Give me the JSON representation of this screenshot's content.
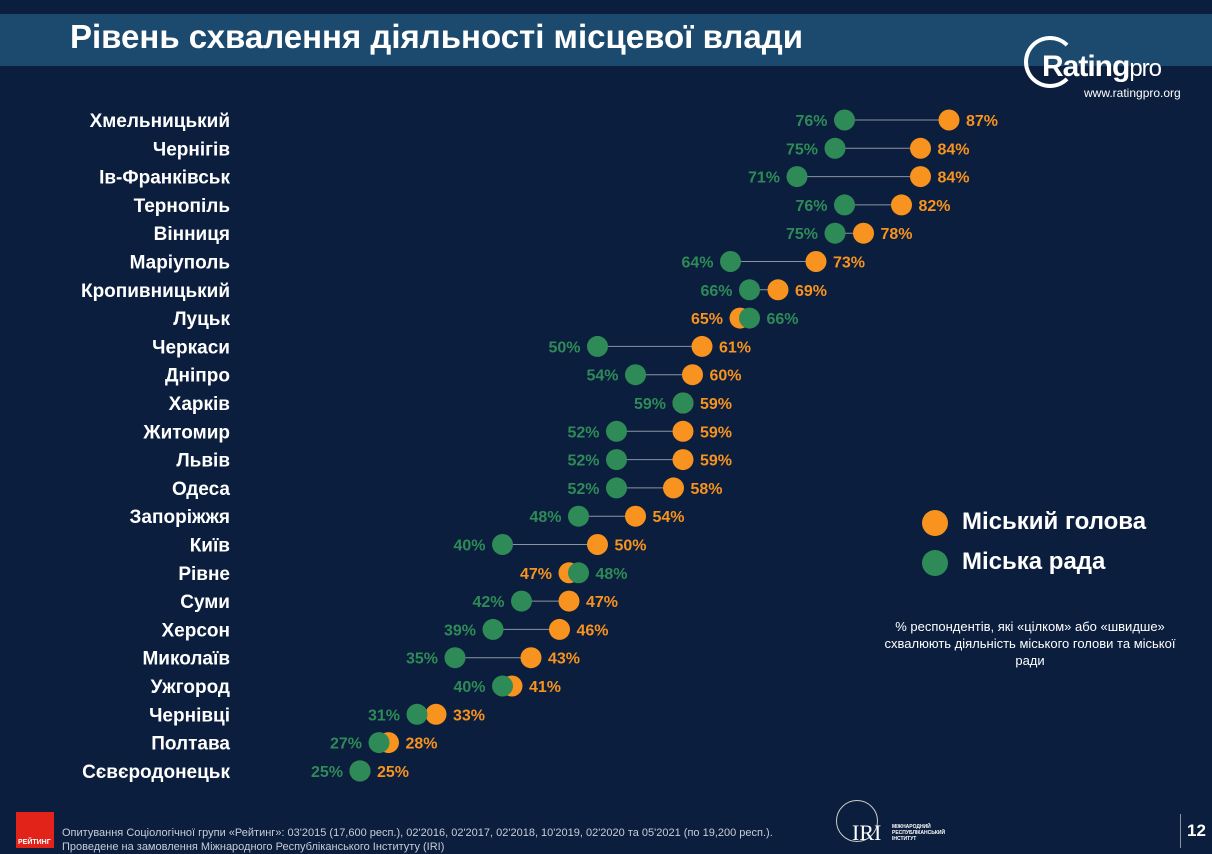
{
  "title": "Рівень схвалення діяльності місцевої влади",
  "logo": {
    "word": "Rating",
    "suffix": "pro",
    "url": "www.ratingpro.org"
  },
  "legend": {
    "mayor": "Міський голова",
    "council": "Міська рада"
  },
  "note": "% респондентів, які «цілком» або «швидше» схвалюють діяльність міського голови та міської ради",
  "footer": {
    "badge": "РЕЙТИНГ",
    "line1": "Опитування Соціологічної групи «Рейтинг»: 03'2015 (17,600 респ.), 02'2016, 02'2017, 02'2018, 10'2019, 02'2020 та 05'2021 (по 19,200 респ.).",
    "line2": "Проведене на замовлення Міжнародного Республіканського Інституту (IRI)"
  },
  "iri": {
    "name": "IRI",
    "subtitle": "МІЖНАРОДНИЙ РЕСПУБЛІКАНСЬКИЙ ІНСТИТУТ"
  },
  "page_number": "12",
  "colors": {
    "mayor": "#f7931e",
    "council": "#2e8b57",
    "background": "#0b1e3d",
    "title_bar": "#1c4a6e"
  },
  "chart_data": {
    "type": "dumbbell",
    "categories": [
      "Хмельницький",
      "Чернігів",
      "Ів-Франківськ",
      "Тернопіль",
      "Вінниця",
      "Маріуполь",
      "Кропивницький",
      "Луцьк",
      "Черкаси",
      "Дніпро",
      "Харків",
      "Житомир",
      "Львів",
      "Одеса",
      "Запоріжжя",
      "Київ",
      "Рівне",
      "Суми",
      "Херсон",
      "Миколаїв",
      "Ужгород",
      "Чернівці",
      "Полтава",
      "Сєвєродонецьк"
    ],
    "series": [
      {
        "name": "Міський голова",
        "values": [
          87,
          84,
          84,
          82,
          78,
          73,
          69,
          65,
          61,
          60,
          59,
          59,
          59,
          58,
          54,
          50,
          47,
          47,
          46,
          43,
          41,
          33,
          28,
          25
        ]
      },
      {
        "name": "Міська рада",
        "values": [
          76,
          75,
          71,
          76,
          75,
          64,
          66,
          66,
          50,
          54,
          59,
          52,
          52,
          52,
          48,
          40,
          48,
          42,
          39,
          35,
          40,
          31,
          27,
          25
        ]
      }
    ],
    "value_suffix": "%"
  }
}
